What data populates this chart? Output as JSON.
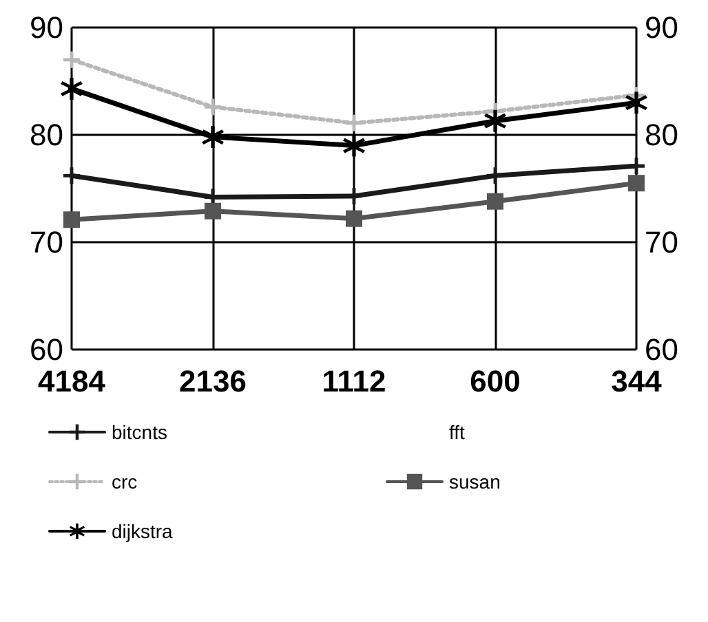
{
  "chart_data": {
    "type": "line",
    "categories": [
      "4184",
      "2136",
      "1112",
      "600",
      "344"
    ],
    "series": [
      {
        "name": "bitcnts",
        "color": "#1a1a1a",
        "marker": "cross",
        "line_style": "solid",
        "values": [
          76.2,
          74.2,
          74.3,
          76.2,
          77.1
        ]
      },
      {
        "name": "fft",
        "marker": "none",
        "values": [
          null,
          null,
          null,
          null,
          null
        ]
      },
      {
        "name": "crc",
        "color": "#b8b8b8",
        "marker": "cross",
        "line_style": "dotted",
        "values": [
          87,
          82.6,
          81.1,
          82.2,
          83.7
        ]
      },
      {
        "name": "susan",
        "color": "#555555",
        "marker": "square",
        "line_style": "solid",
        "values": [
          72.1,
          72.9,
          72.2,
          73.8,
          75.5
        ]
      },
      {
        "name": "dijkstra",
        "color": "#000000",
        "marker": "star",
        "line_style": "solid",
        "values": [
          84.3,
          79.8,
          79,
          81.3,
          83
        ]
      }
    ],
    "ylim": [
      60,
      90
    ],
    "yticks": [
      60,
      70,
      80,
      90
    ],
    "y2lim": [
      60,
      90
    ],
    "y2ticks": [
      60,
      70,
      80,
      90
    ],
    "grid": true,
    "legend": "bottom"
  }
}
